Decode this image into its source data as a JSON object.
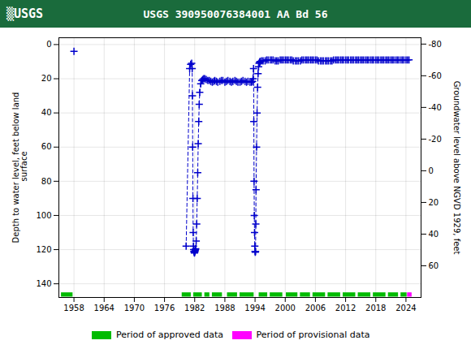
{
  "chart_data": {
    "type": "line",
    "title": "USGS 390950076384001 AA Bd  56",
    "annotations": [
      {
        "text": "▒USGS",
        "color": "#1a6b3c"
      }
    ],
    "ylabel": "Depth to water level, feet below land\n surface",
    "y2label": "Groundwater level above NGVD 1929, feet",
    "xlim": [
      1955,
      2027
    ],
    "xticks": [
      1958,
      1964,
      1970,
      1976,
      1982,
      1988,
      1994,
      2000,
      2006,
      2012,
      2018,
      2024
    ],
    "ylim": [
      148,
      -4
    ],
    "yticks": [
      0,
      20,
      40,
      60,
      80,
      100,
      120,
      140
    ],
    "y2lim": [
      80,
      -84
    ],
    "y2ticks": [
      60,
      40,
      20,
      0,
      -20,
      -40,
      -60,
      -80
    ],
    "grid": true,
    "legend": "bottom",
    "series": [
      {
        "type": "scatter",
        "color": "#0000cc",
        "marker": "+",
        "line_style": "none",
        "x": [
          1958.0
        ],
        "values": [
          4.0
        ]
      },
      {
        "type": "line",
        "color": "#0000cc",
        "marker": "+",
        "line_style": "dashed",
        "x": [
          1980.3,
          1981.0,
          1981.2,
          1981.4,
          1981.5,
          1981.55,
          1981.6,
          1981.65,
          1981.7,
          1981.75,
          1981.8,
          1981.85,
          1981.9,
          1981.95,
          1982.0,
          1982.05,
          1982.1,
          1982.15,
          1982.2,
          1982.3,
          1982.4,
          1982.5,
          1982.6,
          1982.7,
          1982.8,
          1982.9,
          1983.0,
          1983.2,
          1983.4,
          1983.6,
          1983.8,
          1984.0,
          1984.3,
          1984.6,
          1984.9,
          1985.2,
          1985.5,
          1985.8,
          1986.0,
          1986.3,
          1986.6,
          1987.0,
          1987.3,
          1987.6,
          1988.0,
          1988.3,
          1988.6,
          1989.0,
          1989.3,
          1989.6,
          1990.0,
          1990.3,
          1990.6,
          1991.0,
          1991.3,
          1991.6,
          1992.0,
          1992.3,
          1992.6,
          1993.0,
          1993.3,
          1993.5,
          1993.6,
          1993.7,
          1993.75,
          1993.8,
          1993.85,
          1993.9,
          1993.95,
          1994.0,
          1994.05,
          1994.1,
          1994.15,
          1994.2,
          1994.3,
          1994.4,
          1994.5,
          1994.6,
          1994.7,
          1994.8,
          1994.9,
          1995.0
        ],
        "values": [
          118.0,
          14.0,
          11.5,
          11.0,
          14.0,
          30.0,
          60.0,
          90.0,
          110.0,
          118.0,
          120.0,
          121.0,
          121.5,
          122.0,
          121.5,
          121.0,
          120.5,
          120.0,
          119.5,
          115.0,
          105.0,
          90.0,
          75.0,
          58.0,
          45.0,
          35.0,
          28.0,
          23.0,
          21.0,
          20.5,
          20.0,
          20.0,
          20.5,
          21.0,
          21.0,
          21.5,
          22.0,
          21.5,
          21.0,
          21.5,
          22.0,
          21.5,
          21.0,
          21.0,
          22.0,
          21.5,
          21.0,
          21.5,
          22.0,
          21.5,
          21.0,
          21.5,
          22.0,
          22.0,
          21.5,
          21.0,
          21.5,
          22.0,
          21.5,
          22.0,
          22.0,
          21.5,
          20.0,
          14.0,
          45.0,
          80.0,
          100.0,
          110.0,
          118.0,
          121.0,
          121.5,
          121.0,
          105.0,
          85.0,
          60.0,
          40.0,
          25.0,
          17.0,
          13.0,
          11.0,
          10.5,
          10.0
        ]
      },
      {
        "type": "line",
        "color": "#0000cc",
        "marker": "+",
        "line_style": "dashed",
        "x": [
          1995.0,
          1995.3,
          1995.6,
          1996.0,
          1996.3,
          1996.6,
          1997.0,
          1997.3,
          1997.6,
          1998.0,
          1998.3,
          1998.6,
          1999.0,
          1999.3,
          1999.6,
          2000.0,
          2000.3,
          2000.6,
          2001.0,
          2001.3,
          2001.6,
          2002.0,
          2002.3,
          2002.6,
          2003.0,
          2003.3,
          2003.6,
          2004.0,
          2004.3,
          2004.6,
          2005.0,
          2005.3,
          2005.6,
          2006.0,
          2006.3,
          2006.6,
          2007.0,
          2007.3,
          2007.6,
          2008.0,
          2008.3,
          2008.6,
          2009.0,
          2009.3,
          2009.6,
          2010.0,
          2010.3,
          2010.6,
          2011.0,
          2011.3,
          2011.6,
          2012.0,
          2012.3,
          2012.6,
          2013.0,
          2013.3,
          2013.6,
          2014.0,
          2014.3,
          2014.6,
          2015.0,
          2015.3,
          2015.6,
          2016.0,
          2016.3,
          2016.6,
          2017.0,
          2017.3,
          2017.6,
          2018.0,
          2018.3,
          2018.6,
          2019.0,
          2019.3,
          2019.6,
          2020.0,
          2020.3,
          2020.6,
          2021.0,
          2021.3,
          2021.6,
          2022.0,
          2022.3,
          2022.6,
          2023.0,
          2023.3,
          2023.6,
          2024.0,
          2024.3,
          2024.6
        ],
        "values": [
          10.0,
          9.5,
          9.5,
          9.5,
          9.0,
          9.0,
          9.0,
          9.0,
          9.0,
          9.5,
          9.5,
          9.5,
          9.0,
          9.0,
          9.0,
          9.0,
          9.0,
          9.0,
          9.0,
          9.0,
          9.5,
          9.5,
          9.5,
          9.5,
          9.5,
          9.0,
          9.0,
          9.0,
          9.0,
          9.0,
          9.0,
          9.0,
          9.0,
          9.0,
          9.0,
          9.5,
          9.5,
          9.5,
          9.5,
          9.5,
          9.5,
          9.5,
          9.5,
          9.5,
          9.0,
          9.0,
          9.0,
          9.0,
          9.0,
          9.0,
          9.0,
          9.0,
          9.0,
          9.0,
          9.0,
          9.0,
          9.0,
          9.0,
          9.0,
          9.0,
          9.0,
          9.0,
          9.0,
          9.0,
          9.0,
          9.0,
          9.0,
          9.0,
          9.0,
          9.0,
          9.0,
          9.0,
          9.0,
          9.0,
          9.0,
          9.0,
          9.0,
          9.0,
          9.0,
          9.0,
          9.0,
          9.0,
          9.0,
          9.0,
          9.0,
          9.0,
          9.0,
          9.0,
          9.0,
          9.0
        ]
      },
      {
        "name": "Period of approved data",
        "type": "bar",
        "orientation": "horizontal",
        "color": "#00bb00",
        "y": 146.5,
        "height": 2.5,
        "ranges": [
          [
            1955.5,
            1957.8
          ],
          [
            1979.5,
            1981.3
          ],
          [
            1981.8,
            1983.5
          ],
          [
            1984.0,
            1985.0
          ],
          [
            1985.5,
            1987.5
          ],
          [
            1988.5,
            1990.5
          ],
          [
            1991.0,
            1993.8
          ],
          [
            1994.8,
            1996.5
          ],
          [
            1997.0,
            1999.5
          ],
          [
            2000.2,
            2002.5
          ],
          [
            2003.0,
            2005.0
          ],
          [
            2005.5,
            2008.0
          ],
          [
            2008.5,
            2011.0
          ],
          [
            2011.5,
            2014.0
          ],
          [
            2014.5,
            2017.0
          ],
          [
            2017.5,
            2020.0
          ],
          [
            2020.5,
            2022.5
          ],
          [
            2023.0,
            2024.2
          ]
        ]
      },
      {
        "name": "Period of provisional data",
        "type": "bar",
        "orientation": "horizontal",
        "color": "#ff00ff",
        "y": 146.5,
        "height": 2.5,
        "ranges": [
          [
            2024.3,
            2025.2
          ]
        ]
      }
    ]
  }
}
